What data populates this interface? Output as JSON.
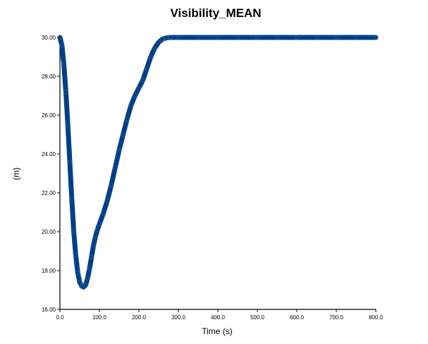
{
  "chart_data": {
    "type": "line",
    "title": "Visibility_MEAN",
    "xlabel": "Time (s)",
    "ylabel": "(m)",
    "xlim": [
      0,
      800
    ],
    "ylim": [
      16,
      30
    ],
    "x_ticks": [
      "0.0",
      "100.0",
      "200.0",
      "300.0",
      "400.0",
      "500.0",
      "600.0",
      "700.0",
      "800.0"
    ],
    "y_ticks": [
      "16.00",
      "18.00",
      "20.00",
      "22.00",
      "24.00",
      "26.00",
      "28.00",
      "30.00"
    ],
    "grid": false,
    "series_color": "#003f87",
    "series": [
      {
        "x": [
          0,
          5,
          10,
          15,
          20,
          25,
          30,
          35,
          40,
          45,
          50,
          55,
          60,
          65,
          70,
          75,
          80,
          85,
          90,
          95,
          100,
          110,
          120,
          130,
          140,
          150,
          160,
          170,
          180,
          190,
          200,
          210,
          220,
          230,
          240,
          250,
          260,
          270,
          280,
          300,
          350,
          400,
          450,
          500,
          550,
          600,
          650,
          700,
          750,
          800
        ],
        "y": [
          30.0,
          29.6,
          28.6,
          27.2,
          25.5,
          23.6,
          21.7,
          20.0,
          18.8,
          17.9,
          17.4,
          17.2,
          17.15,
          17.25,
          17.6,
          18.1,
          18.7,
          19.3,
          19.75,
          20.1,
          20.4,
          20.95,
          21.6,
          22.4,
          23.3,
          24.2,
          25.0,
          25.8,
          26.5,
          27.0,
          27.4,
          27.8,
          28.4,
          29.0,
          29.45,
          29.75,
          29.92,
          29.98,
          30.0,
          30.0,
          30.0,
          30.0,
          30.0,
          30.0,
          30.0,
          30.0,
          30.0,
          30.0,
          30.0,
          30.0
        ]
      }
    ]
  }
}
